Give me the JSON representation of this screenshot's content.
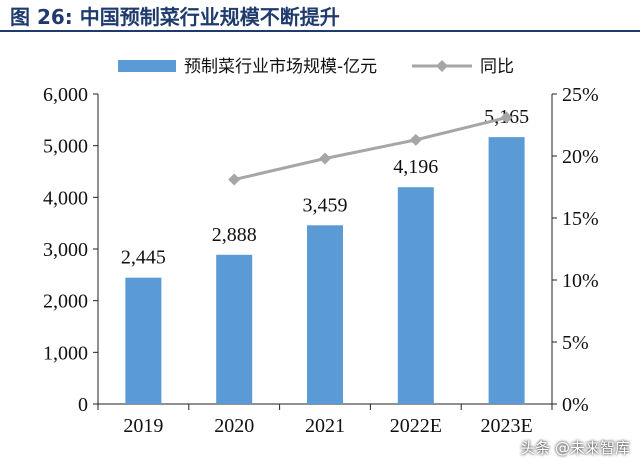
{
  "figure": {
    "title": "图 26:  中国预制菜行业规模不断提升",
    "watermark": "头条 @未来智库"
  },
  "colors": {
    "bar": "#5b9bd5",
    "line": "#a6a6a6",
    "title": "#1f3b6e"
  },
  "chart_data": {
    "type": "bar",
    "title": "图 26:  中国预制菜行业规模不断提升",
    "categories": [
      "2019",
      "2020",
      "2021",
      "2022E",
      "2023E"
    ],
    "series": [
      {
        "name": "预制菜行业市场规模-亿元",
        "type": "bar",
        "axis": "left",
        "values": [
          2445,
          2888,
          3459,
          4196,
          5165
        ],
        "labels": [
          "2,445",
          "2,888",
          "3,459",
          "4,196",
          "5,165"
        ]
      },
      {
        "name": "同比",
        "type": "line",
        "axis": "right",
        "values": [
          null,
          18.1,
          19.8,
          21.3,
          23.1
        ]
      }
    ],
    "yaxis_left": {
      "range": [
        0,
        6000
      ],
      "ticks": [
        "0",
        "1,000",
        "2,000",
        "3,000",
        "4,000",
        "5,000",
        "6,000"
      ]
    },
    "yaxis_right": {
      "range": [
        0,
        25
      ],
      "ticks": [
        "0%",
        "5%",
        "10%",
        "15%",
        "20%",
        "25%"
      ]
    },
    "xlabel": "",
    "ylabel": "",
    "grid": false,
    "legend": "top"
  }
}
